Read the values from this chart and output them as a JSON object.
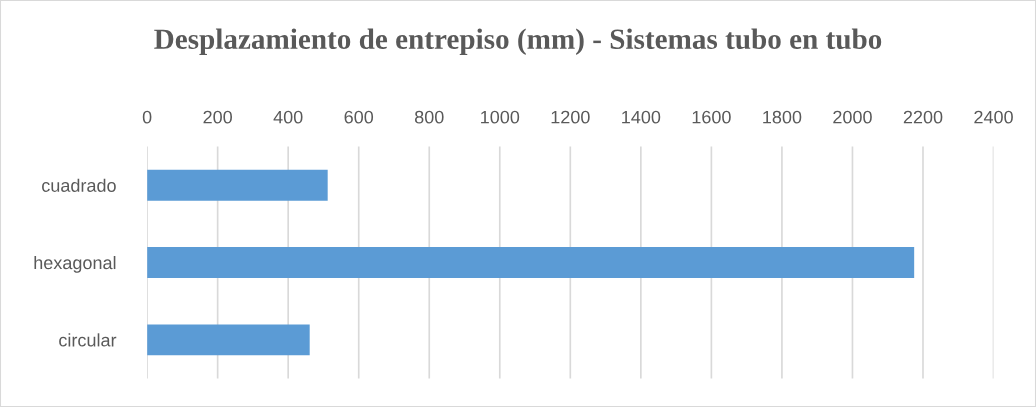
{
  "chart_data": {
    "type": "bar",
    "orientation": "horizontal",
    "title": "Desplazamiento de entrepiso (mm) - Sistemas tubo en tubo",
    "categories": [
      "cuadrado",
      "hexagonal",
      "circular"
    ],
    "values": [
      512,
      2175,
      461
    ],
    "color": "#5b9bd5",
    "xlim": [
      0,
      2400
    ],
    "xticks": [
      0,
      200,
      400,
      600,
      800,
      1000,
      1200,
      1400,
      1600,
      1800,
      2000,
      2200,
      2400
    ],
    "grid": "x",
    "legend": false
  }
}
